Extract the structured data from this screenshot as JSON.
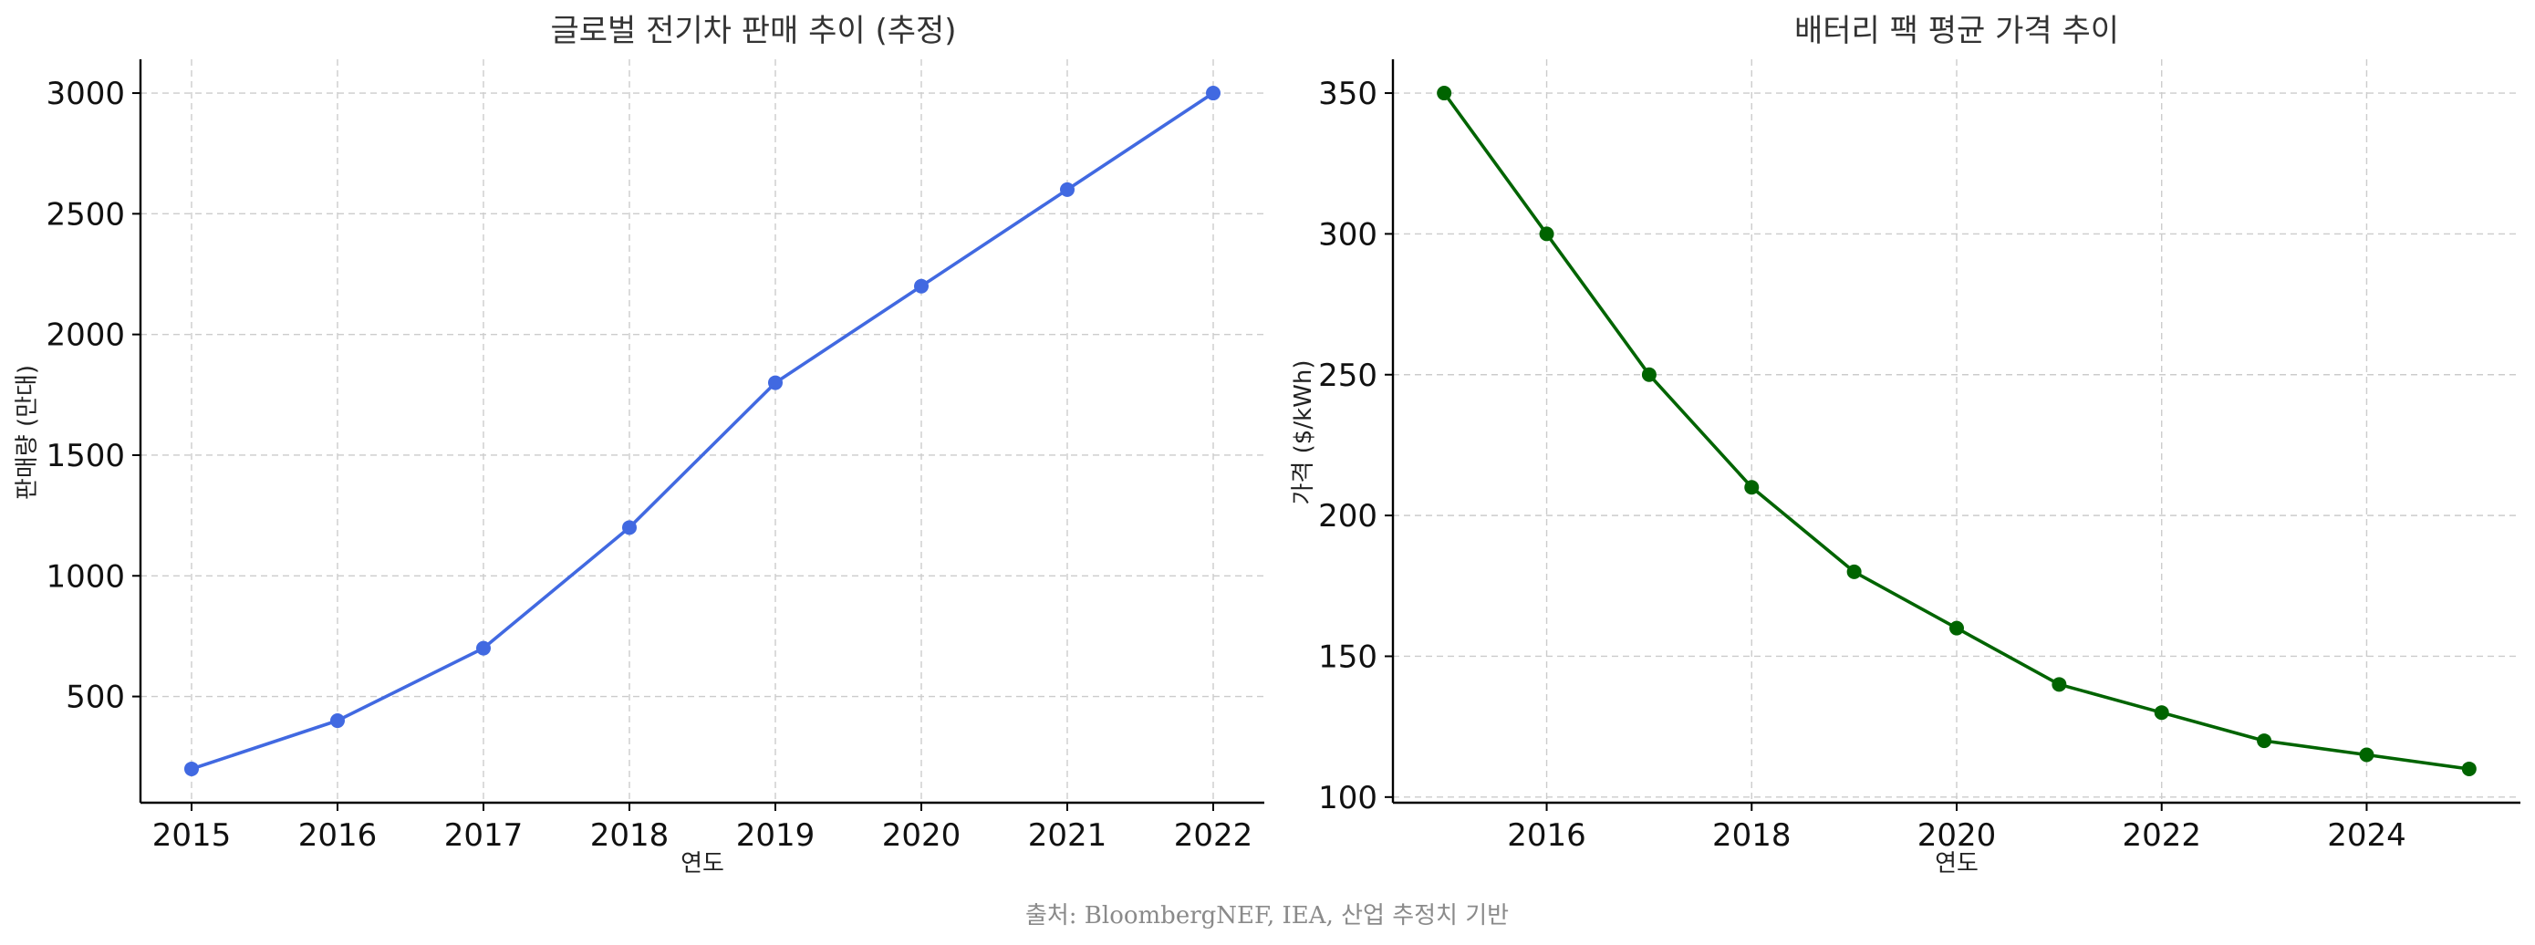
{
  "chart_data": [
    {
      "type": "line",
      "title": "글로벌 전기차 판매 추이 (추정)",
      "xlabel": "연도",
      "ylabel": "판매량 (만대)",
      "x": [
        2015,
        2016,
        2017,
        2018,
        2019,
        2020,
        2021,
        2022
      ],
      "xticks": [
        "2015",
        "2016",
        "2017",
        "2018",
        "2019",
        "2020",
        "2021",
        "2022"
      ],
      "yticks": [
        "500",
        "1000",
        "1500",
        "2000",
        "2500",
        "3000"
      ],
      "xlim": [
        2014.65,
        2022.35
      ],
      "ylim": [
        60,
        3140
      ],
      "grid": true,
      "series": [
        {
          "values": [
            200,
            400,
            700,
            1200,
            1800,
            2200,
            2600,
            3000
          ],
          "color": "#4169e1",
          "marker": "circle"
        }
      ]
    },
    {
      "type": "line",
      "title": "배터리 팩 평균 가격 추이",
      "xlabel": "연도",
      "ylabel": "가격 ($/kWh)",
      "x": [
        2015,
        2016,
        2017,
        2018,
        2019,
        2020,
        2021,
        2022,
        2023,
        2024,
        2025
      ],
      "xticks": [
        "2016",
        "2018",
        "2020",
        "2022",
        "2024"
      ],
      "yticks": [
        "100",
        "150",
        "200",
        "250",
        "300",
        "350"
      ],
      "xlim": [
        2014.5,
        2025.5
      ],
      "ylim": [
        98,
        362
      ],
      "grid": true,
      "series": [
        {
          "values": [
            350,
            300,
            250,
            210,
            180,
            160,
            140,
            130,
            120,
            115,
            110
          ],
          "color": "#006400",
          "marker": "circle"
        }
      ]
    }
  ],
  "caption": "출처: BloombergNEF, IEA, 산업 추정치 기반"
}
